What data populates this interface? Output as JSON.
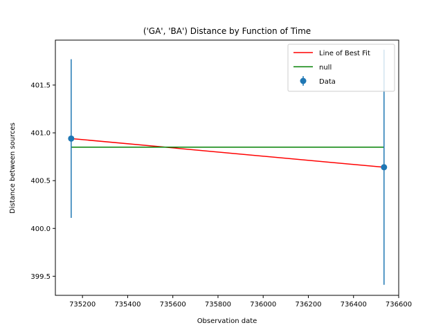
{
  "chart_data": {
    "type": "scatter",
    "title": "('GA', 'BA') Distance by Function of Time",
    "xlabel": "Observation date",
    "ylabel": "Distance between sources",
    "xlim": [
      735080,
      736600
    ],
    "ylim": [
      399.3,
      401.97
    ],
    "xticks": [
      735200,
      735400,
      735600,
      735800,
      736000,
      736200,
      736400,
      736600
    ],
    "yticks": [
      399.5,
      400.0,
      400.5,
      401.0,
      401.5
    ],
    "grid": false,
    "legend_position": "top-right",
    "series": [
      {
        "name": "Line of Best Fit",
        "kind": "line",
        "color": "#ff0000",
        "points": [
          [
            735150,
            400.94
          ],
          [
            736535,
            400.64
          ]
        ]
      },
      {
        "name": "null",
        "kind": "line",
        "color": "#008000",
        "points": [
          [
            735150,
            400.85
          ],
          [
            736535,
            400.85
          ]
        ]
      },
      {
        "name": "Data",
        "kind": "errorbar",
        "color": "#1f77b4",
        "points": [
          {
            "x": 735150,
            "y": 400.94,
            "yerr": 0.83
          },
          {
            "x": 736535,
            "y": 400.64,
            "yerr": 1.23
          }
        ]
      }
    ]
  }
}
